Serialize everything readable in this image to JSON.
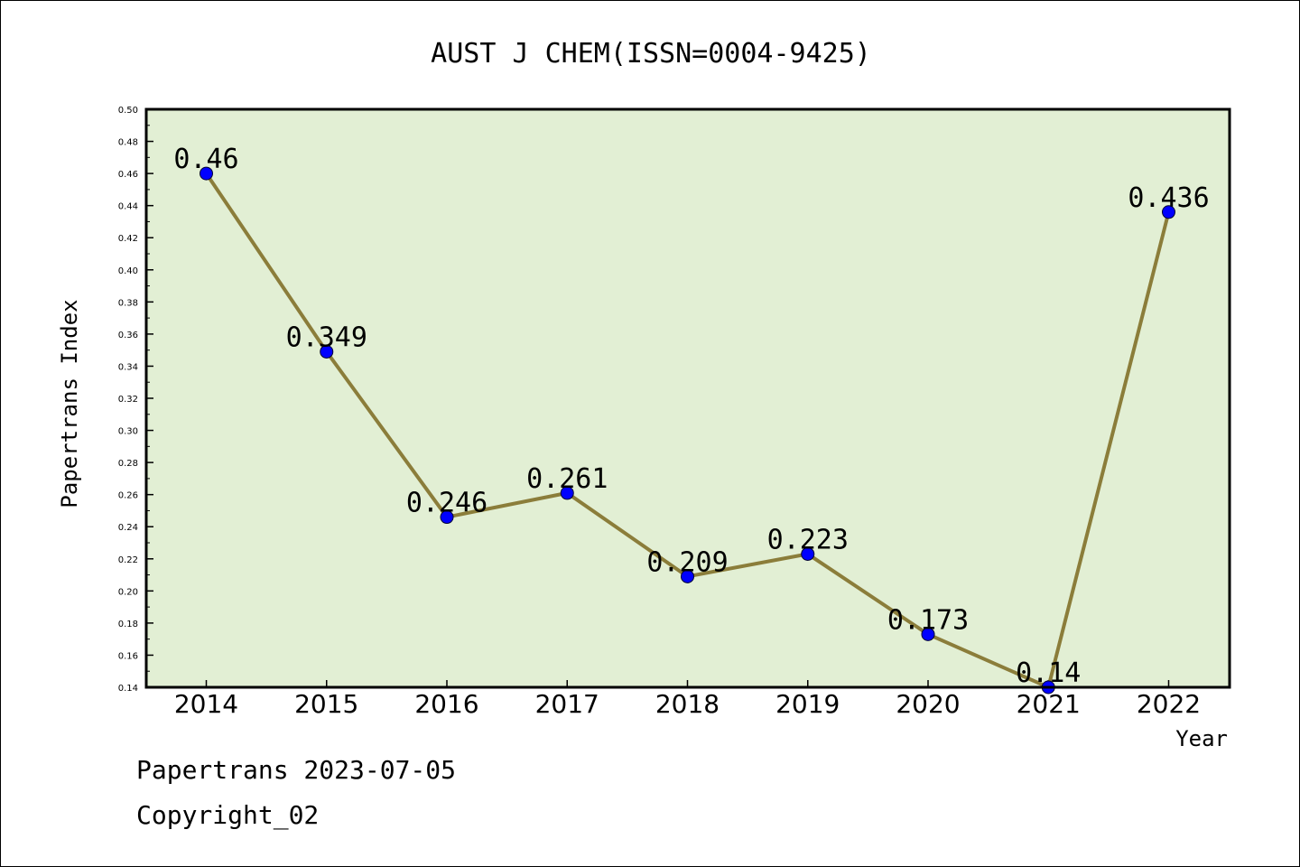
{
  "chart_data": {
    "type": "line",
    "title": "AUST J CHEM(ISSN=0004-9425)",
    "xlabel": "Year",
    "ylabel": "Papertrans Index",
    "categories": [
      "2014",
      "2015",
      "2016",
      "2017",
      "2018",
      "2019",
      "2020",
      "2021",
      "2022"
    ],
    "series": [
      {
        "values": [
          0.46,
          0.349,
          0.246,
          0.261,
          0.209,
          0.223,
          0.173,
          0.14,
          0.436
        ],
        "labels": [
          "0.46",
          "0.349",
          "0.246",
          "0.261",
          "0.209",
          "0.223",
          "0.173",
          "0.14",
          "0.436"
        ],
        "line_color": "#8b7d3a",
        "marker_color": "#0000ff"
      }
    ],
    "ylim": [
      0.14,
      0.5
    ],
    "yticks": [
      "0.14",
      "0.16",
      "0.18",
      "0.20",
      "0.22",
      "0.24",
      "0.26",
      "0.28",
      "0.30",
      "0.32",
      "0.34",
      "0.36",
      "0.38",
      "0.40",
      "0.42",
      "0.44",
      "0.46",
      "0.48",
      "0.50"
    ],
    "plot_background": "#e2efd4",
    "grid": false
  },
  "footer": {
    "line1": "Papertrans 2023-07-05",
    "line2": "Copyright_02"
  }
}
